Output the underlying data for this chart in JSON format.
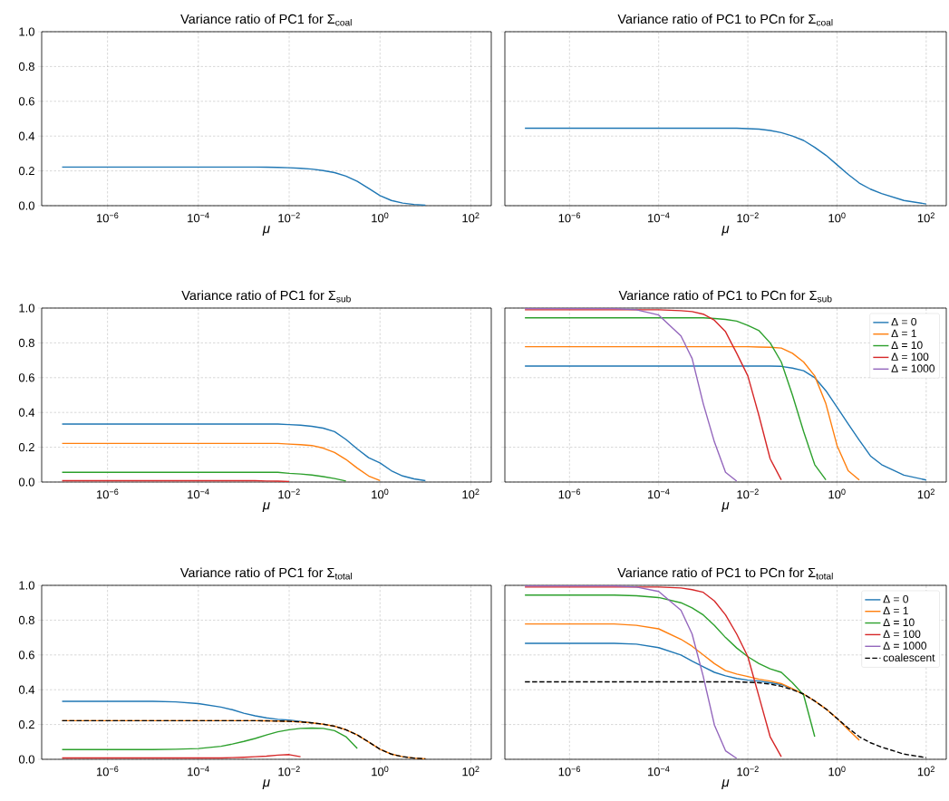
{
  "chart_data": [
    {
      "type": "line",
      "title": "Variance ratio of PC1 for Σ$_{coal}$",
      "xlabel": "μ",
      "log": "x",
      "grid": true,
      "xlim": [
        3.55e-08,
        282
      ],
      "ylim": [
        0,
        1
      ],
      "xticks": [
        {
          "value": 1e-06,
          "label": "10$^{−6}$"
        },
        {
          "value": 0.0001,
          "label": "10$^{−4}$"
        },
        {
          "value": 0.01,
          "label": "10$^{−2}$"
        },
        {
          "value": 1,
          "label": "10$^{0}$"
        },
        {
          "value": 100,
          "label": "10$^{2}$"
        }
      ],
      "yticks": [
        {
          "value": 0,
          "label": "0.0"
        },
        {
          "value": 0.2,
          "label": "0.2"
        },
        {
          "value": 0.4,
          "label": "0.4"
        },
        {
          "value": 0.6,
          "label": "0.6"
        },
        {
          "value": 0.8,
          "label": "0.8"
        },
        {
          "value": 1,
          "label": "1.0"
        }
      ],
      "x": [
        1e-07,
        1e-06,
        1e-05,
        3.16e-05,
        0.0001,
        0.000316,
        0.000562,
        0.001,
        0.00178,
        0.00316,
        0.00562,
        0.01,
        0.0178,
        0.0316,
        0.0562,
        0.1,
        0.178,
        0.316,
        0.562,
        1,
        1.78,
        3.16,
        5.62,
        10
      ],
      "series": [
        {
          "color": "#1f77b4",
          "values": [
            0.222,
            0.222,
            0.222,
            0.222,
            0.222,
            0.222,
            0.222,
            0.222,
            0.222,
            0.221,
            0.22,
            0.218,
            0.215,
            0.21,
            0.202,
            0.19,
            0.17,
            0.14,
            0.1,
            0.058,
            0.03,
            0.015,
            0.007,
            0.003
          ]
        }
      ]
    },
    {
      "type": "line",
      "title": "Variance ratio of PC1 to PCn for Σ$_{coal}$",
      "xlabel": "μ",
      "log": "x",
      "grid": true,
      "tick_labels": "x",
      "xlim": [
        3.55e-08,
        282
      ],
      "ylim": [
        0,
        1
      ],
      "xticks": [
        {
          "value": 1e-06,
          "label": "10$^{−6}$"
        },
        {
          "value": 0.0001,
          "label": "10$^{−4}$"
        },
        {
          "value": 0.01,
          "label": "10$^{−2}$"
        },
        {
          "value": 1,
          "label": "10$^{0}$"
        },
        {
          "value": 100,
          "label": "10$^{2}$"
        }
      ],
      "yticks": [
        {
          "value": 0,
          "label": null
        },
        {
          "value": 0.2,
          "label": null
        },
        {
          "value": 0.4,
          "label": null
        },
        {
          "value": 0.6,
          "label": null
        },
        {
          "value": 0.8,
          "label": null
        },
        {
          "value": 1,
          "label": null
        }
      ],
      "x": [
        1e-07,
        1e-06,
        1e-05,
        3.16e-05,
        0.0001,
        0.000316,
        0.000562,
        0.001,
        0.00178,
        0.00316,
        0.00562,
        0.01,
        0.0178,
        0.0316,
        0.0562,
        0.1,
        0.178,
        0.316,
        0.562,
        1,
        1.78,
        3.16,
        5.62,
        10,
        31.6,
        100
      ],
      "series": [
        {
          "color": "#1f77b4",
          "values": [
            0.445,
            0.445,
            0.445,
            0.445,
            0.445,
            0.445,
            0.445,
            0.445,
            0.445,
            0.445,
            0.445,
            0.443,
            0.44,
            0.432,
            0.42,
            0.4,
            0.375,
            0.335,
            0.29,
            0.235,
            0.18,
            0.13,
            0.095,
            0.07,
            0.03,
            0.01
          ]
        }
      ]
    },
    {
      "type": "line",
      "title": "Variance ratio of PC1 for Σ$_{sub}$",
      "xlabel": "μ",
      "log": "x",
      "grid": true,
      "xlim": [
        3.55e-08,
        282
      ],
      "ylim": [
        0,
        1
      ],
      "xticks": [
        {
          "value": 1e-06,
          "label": "10$^{−6}$"
        },
        {
          "value": 0.0001,
          "label": "10$^{−4}$"
        },
        {
          "value": 0.01,
          "label": "10$^{−2}$"
        },
        {
          "value": 1,
          "label": "10$^{0}$"
        },
        {
          "value": 100,
          "label": "10$^{2}$"
        }
      ],
      "yticks": [
        {
          "value": 0,
          "label": "0.0"
        },
        {
          "value": 0.2,
          "label": "0.2"
        },
        {
          "value": 0.4,
          "label": "0.4"
        },
        {
          "value": 0.6,
          "label": "0.6"
        },
        {
          "value": 0.8,
          "label": "0.8"
        },
        {
          "value": 1,
          "label": "1.0"
        }
      ],
      "x": [
        1e-07,
        1e-06,
        1e-05,
        3.16e-05,
        0.0001,
        0.000316,
        0.000562,
        0.001,
        0.00178,
        0.00316,
        0.00562,
        0.01,
        0.0178,
        0.0316,
        0.0562,
        0.1,
        0.178,
        0.316,
        0.562,
        1,
        1.78,
        3.16,
        5.62,
        10
      ],
      "series": [
        {
          "color": "#1f77b4",
          "values": [
            0.333,
            0.333,
            0.333,
            0.333,
            0.333,
            0.333,
            0.333,
            0.333,
            0.333,
            0.333,
            0.333,
            0.33,
            0.327,
            0.32,
            0.31,
            0.29,
            0.245,
            0.19,
            0.14,
            0.11,
            0.065,
            0.035,
            0.018,
            0.008
          ]
        },
        {
          "color": "#ff7f0e",
          "values": [
            0.222,
            0.222,
            0.222,
            0.222,
            0.222,
            0.222,
            0.222,
            0.222,
            0.222,
            0.222,
            0.222,
            0.218,
            0.215,
            0.21,
            0.195,
            0.17,
            0.13,
            0.08,
            0.035,
            0.008,
            null,
            null,
            null,
            null
          ]
        },
        {
          "color": "#2ca02c",
          "values": [
            0.056,
            0.056,
            0.056,
            0.056,
            0.056,
            0.056,
            0.056,
            0.056,
            0.056,
            0.056,
            0.056,
            0.05,
            0.046,
            0.04,
            0.031,
            0.02,
            0.006,
            null,
            null,
            null,
            null,
            null,
            null,
            null
          ]
        },
        {
          "color": "#d62728",
          "values": [
            0.008,
            0.008,
            0.008,
            0.008,
            0.008,
            0.008,
            0.008,
            0.008,
            0.008,
            0.006,
            0.005,
            0.003,
            null,
            null,
            null,
            null,
            null,
            null,
            null,
            null,
            null,
            null,
            null,
            null
          ]
        }
      ]
    },
    {
      "type": "line",
      "title": "Variance ratio of PC1 to PCn for Σ$_{sub}$",
      "xlabel": "μ",
      "log": "x",
      "grid": true,
      "tick_labels": "x",
      "legend": "top right",
      "xlim": [
        3.55e-08,
        282
      ],
      "ylim": [
        0,
        1
      ],
      "xticks": [
        {
          "value": 1e-06,
          "label": "10$^{−6}$"
        },
        {
          "value": 0.0001,
          "label": "10$^{−4}$"
        },
        {
          "value": 0.01,
          "label": "10$^{−2}$"
        },
        {
          "value": 1,
          "label": "10$^{0}$"
        },
        {
          "value": 100,
          "label": "10$^{2}$"
        }
      ],
      "yticks": [
        {
          "value": 0,
          "label": null
        },
        {
          "value": 0.2,
          "label": null
        },
        {
          "value": 0.4,
          "label": null
        },
        {
          "value": 0.6,
          "label": null
        },
        {
          "value": 0.8,
          "label": null
        },
        {
          "value": 1,
          "label": null
        }
      ],
      "x": [
        1e-07,
        1e-06,
        1e-05,
        3.16e-05,
        0.0001,
        0.000316,
        0.000562,
        0.001,
        0.00178,
        0.00316,
        0.00562,
        0.01,
        0.0178,
        0.0316,
        0.0562,
        0.1,
        0.178,
        0.316,
        0.562,
        1,
        1.78,
        3.16,
        5.62,
        10,
        31.6,
        100
      ],
      "series": [
        {
          "name": "Δ = 0",
          "color": "#1f77b4",
          "values": [
            0.667,
            0.667,
            0.667,
            0.667,
            0.667,
            0.667,
            0.667,
            0.667,
            0.667,
            0.667,
            0.667,
            0.667,
            0.667,
            0.667,
            0.665,
            0.655,
            0.64,
            0.6,
            0.525,
            0.43,
            0.334,
            0.24,
            0.15,
            0.1,
            0.04,
            0.012
          ]
        },
        {
          "name": "Δ = 1",
          "color": "#ff7f0e",
          "values": [
            0.778,
            0.778,
            0.778,
            0.778,
            0.778,
            0.778,
            0.778,
            0.778,
            0.778,
            0.778,
            0.778,
            0.778,
            0.776,
            0.775,
            0.77,
            0.74,
            0.69,
            0.61,
            0.45,
            0.21,
            0.065,
            0.012,
            null,
            null,
            null,
            null
          ]
        },
        {
          "name": "Δ = 10",
          "color": "#2ca02c",
          "values": [
            0.944,
            0.944,
            0.944,
            0.944,
            0.944,
            0.944,
            0.944,
            0.944,
            0.94,
            0.935,
            0.925,
            0.9,
            0.87,
            0.8,
            0.69,
            0.5,
            0.29,
            0.1,
            0.012,
            null,
            null,
            null,
            null,
            null,
            null,
            null
          ]
        },
        {
          "name": "Δ = 100",
          "color": "#d62728",
          "values": [
            0.99,
            0.99,
            0.99,
            0.99,
            0.99,
            0.985,
            0.98,
            0.965,
            0.93,
            0.864,
            0.74,
            0.61,
            0.38,
            0.134,
            0.012,
            null,
            null,
            null,
            null,
            null,
            null,
            null,
            null,
            null,
            null,
            null
          ]
        },
        {
          "name": "Δ = 1000",
          "color": "#9467bd",
          "values": [
            0.997,
            0.997,
            0.997,
            0.99,
            0.96,
            0.84,
            0.71,
            0.45,
            0.23,
            0.056,
            0.005,
            null,
            null,
            null,
            null,
            null,
            null,
            null,
            null,
            null,
            null,
            null,
            null,
            null,
            null,
            null
          ]
        }
      ]
    },
    {
      "type": "line",
      "title": "Variance ratio of PC1 for Σ$_{total}$",
      "xlabel": "μ",
      "log": "x",
      "grid": true,
      "xlim": [
        3.55e-08,
        282
      ],
      "ylim": [
        0,
        1
      ],
      "xticks": [
        {
          "value": 1e-06,
          "label": "10$^{−6}$"
        },
        {
          "value": 0.0001,
          "label": "10$^{−4}$"
        },
        {
          "value": 0.01,
          "label": "10$^{−2}$"
        },
        {
          "value": 1,
          "label": "10$^{0}$"
        },
        {
          "value": 100,
          "label": "10$^{2}$"
        }
      ],
      "yticks": [
        {
          "value": 0,
          "label": "0.0"
        },
        {
          "value": 0.2,
          "label": "0.2"
        },
        {
          "value": 0.4,
          "label": "0.4"
        },
        {
          "value": 0.6,
          "label": "0.6"
        },
        {
          "value": 0.8,
          "label": "0.8"
        },
        {
          "value": 1,
          "label": "1.0"
        }
      ],
      "x": [
        1e-07,
        1e-06,
        1e-05,
        3.16e-05,
        0.0001,
        0.000316,
        0.000562,
        0.001,
        0.00178,
        0.00316,
        0.00562,
        0.01,
        0.0178,
        0.0316,
        0.0562,
        0.1,
        0.178,
        0.316,
        0.562,
        1,
        1.78,
        3.16,
        5.62,
        10
      ],
      "series": [
        {
          "color": "#1f77b4",
          "values": [
            0.333,
            0.333,
            0.333,
            0.33,
            0.32,
            0.3,
            0.285,
            0.265,
            0.25,
            0.238,
            0.23,
            0.225,
            0.218,
            0.21,
            null,
            null,
            null,
            null,
            null,
            null,
            null,
            null,
            null,
            null
          ]
        },
        {
          "color": "#ff7f0e",
          "values": [
            0.222,
            0.222,
            0.222,
            0.222,
            0.222,
            0.222,
            0.222,
            0.222,
            0.222,
            0.221,
            0.22,
            0.218,
            0.215,
            0.21,
            0.202,
            0.19,
            0.17,
            0.14,
            0.1,
            0.058,
            0.03,
            0.015,
            0.007,
            0.003
          ]
        },
        {
          "color": "#2ca02c",
          "values": [
            0.056,
            0.056,
            0.056,
            0.058,
            0.062,
            0.075,
            0.088,
            0.103,
            0.12,
            0.14,
            0.158,
            0.17,
            0.178,
            0.18,
            0.178,
            0.165,
            0.13,
            0.063,
            null,
            null,
            null,
            null,
            null,
            null
          ]
        },
        {
          "color": "#d62728",
          "values": [
            0.008,
            0.008,
            0.008,
            0.008,
            0.008,
            0.008,
            0.01,
            0.012,
            0.015,
            0.018,
            0.024,
            0.027,
            0.015,
            null,
            null,
            null,
            null,
            null,
            null,
            null,
            null,
            null,
            null,
            null
          ]
        },
        {
          "color": "#000000",
          "line_style": "dashed",
          "values": [
            0.222,
            0.222,
            0.222,
            0.222,
            0.222,
            0.222,
            0.222,
            0.222,
            0.222,
            0.221,
            0.22,
            0.218,
            0.215,
            0.21,
            0.202,
            0.19,
            0.17,
            0.14,
            0.1,
            0.058,
            0.03,
            0.015,
            0.007,
            0.003
          ]
        }
      ]
    },
    {
      "type": "line",
      "title": "Variance ratio of PC1 to PCn for Σ$_{total}$",
      "xlabel": "μ",
      "log": "x",
      "grid": true,
      "tick_labels": "x",
      "legend": "top right",
      "xlim": [
        3.55e-08,
        282
      ],
      "ylim": [
        0,
        1
      ],
      "xticks": [
        {
          "value": 1e-06,
          "label": "10$^{−6}$"
        },
        {
          "value": 0.0001,
          "label": "10$^{−4}$"
        },
        {
          "value": 0.01,
          "label": "10$^{−2}$"
        },
        {
          "value": 1,
          "label": "10$^{0}$"
        },
        {
          "value": 100,
          "label": "10$^{2}$"
        }
      ],
      "yticks": [
        {
          "value": 0,
          "label": null
        },
        {
          "value": 0.2,
          "label": null
        },
        {
          "value": 0.4,
          "label": null
        },
        {
          "value": 0.6,
          "label": null
        },
        {
          "value": 0.8,
          "label": null
        },
        {
          "value": 1,
          "label": null
        }
      ],
      "x": [
        1e-07,
        1e-06,
        1e-05,
        3.16e-05,
        0.0001,
        0.000316,
        0.000562,
        0.001,
        0.00178,
        0.00316,
        0.00562,
        0.01,
        0.0178,
        0.0316,
        0.0562,
        0.1,
        0.178,
        0.316,
        0.562,
        1,
        1.78,
        3.16,
        5.62,
        10,
        31.6,
        100
      ],
      "series": [
        {
          "name": "Δ = 0",
          "color": "#1f77b4",
          "values": [
            0.667,
            0.667,
            0.667,
            0.662,
            0.642,
            0.6,
            0.565,
            0.532,
            0.5,
            0.48,
            0.465,
            0.455,
            0.45,
            0.44,
            0.43,
            0.405,
            null,
            null,
            null,
            null,
            null,
            null,
            null,
            null,
            null,
            null
          ]
        },
        {
          "name": "Δ = 1",
          "color": "#ff7f0e",
          "values": [
            0.778,
            0.778,
            0.778,
            0.77,
            0.75,
            0.69,
            0.65,
            0.6,
            0.55,
            0.51,
            0.49,
            0.476,
            0.46,
            0.45,
            0.435,
            0.405,
            0.375,
            0.335,
            0.29,
            0.235,
            0.17,
            0.11,
            null,
            null,
            null,
            null
          ]
        },
        {
          "name": "Δ = 10",
          "color": "#2ca02c",
          "values": [
            0.944,
            0.944,
            0.944,
            0.94,
            0.93,
            0.9,
            0.87,
            0.83,
            0.77,
            0.7,
            0.64,
            0.59,
            0.55,
            0.52,
            0.5,
            0.44,
            0.37,
            0.13,
            null,
            null,
            null,
            null,
            null,
            null,
            null,
            null
          ]
        },
        {
          "name": "Δ = 100",
          "color": "#d62728",
          "values": [
            0.99,
            0.99,
            0.99,
            0.99,
            0.99,
            0.985,
            0.975,
            0.96,
            0.91,
            0.83,
            0.72,
            0.59,
            0.36,
            0.13,
            0.015,
            null,
            null,
            null,
            null,
            null,
            null,
            null,
            null,
            null,
            null,
            null
          ]
        },
        {
          "name": "Δ = 1000",
          "color": "#9467bd",
          "values": [
            0.997,
            0.997,
            0.997,
            0.99,
            0.965,
            0.857,
            0.72,
            0.476,
            0.197,
            0.049,
            0.005,
            null,
            null,
            null,
            null,
            null,
            null,
            null,
            null,
            null,
            null,
            null,
            null,
            null,
            null,
            null
          ]
        },
        {
          "name": "coalescent",
          "color": "#000000",
          "line_style": "dashed",
          "values": [
            0.445,
            0.445,
            0.445,
            0.445,
            0.445,
            0.445,
            0.445,
            0.445,
            0.445,
            0.445,
            0.445,
            0.443,
            0.44,
            0.432,
            0.42,
            0.4,
            0.375,
            0.335,
            0.29,
            0.235,
            0.18,
            0.13,
            0.095,
            0.07,
            0.03,
            0.01
          ]
        }
      ]
    }
  ]
}
